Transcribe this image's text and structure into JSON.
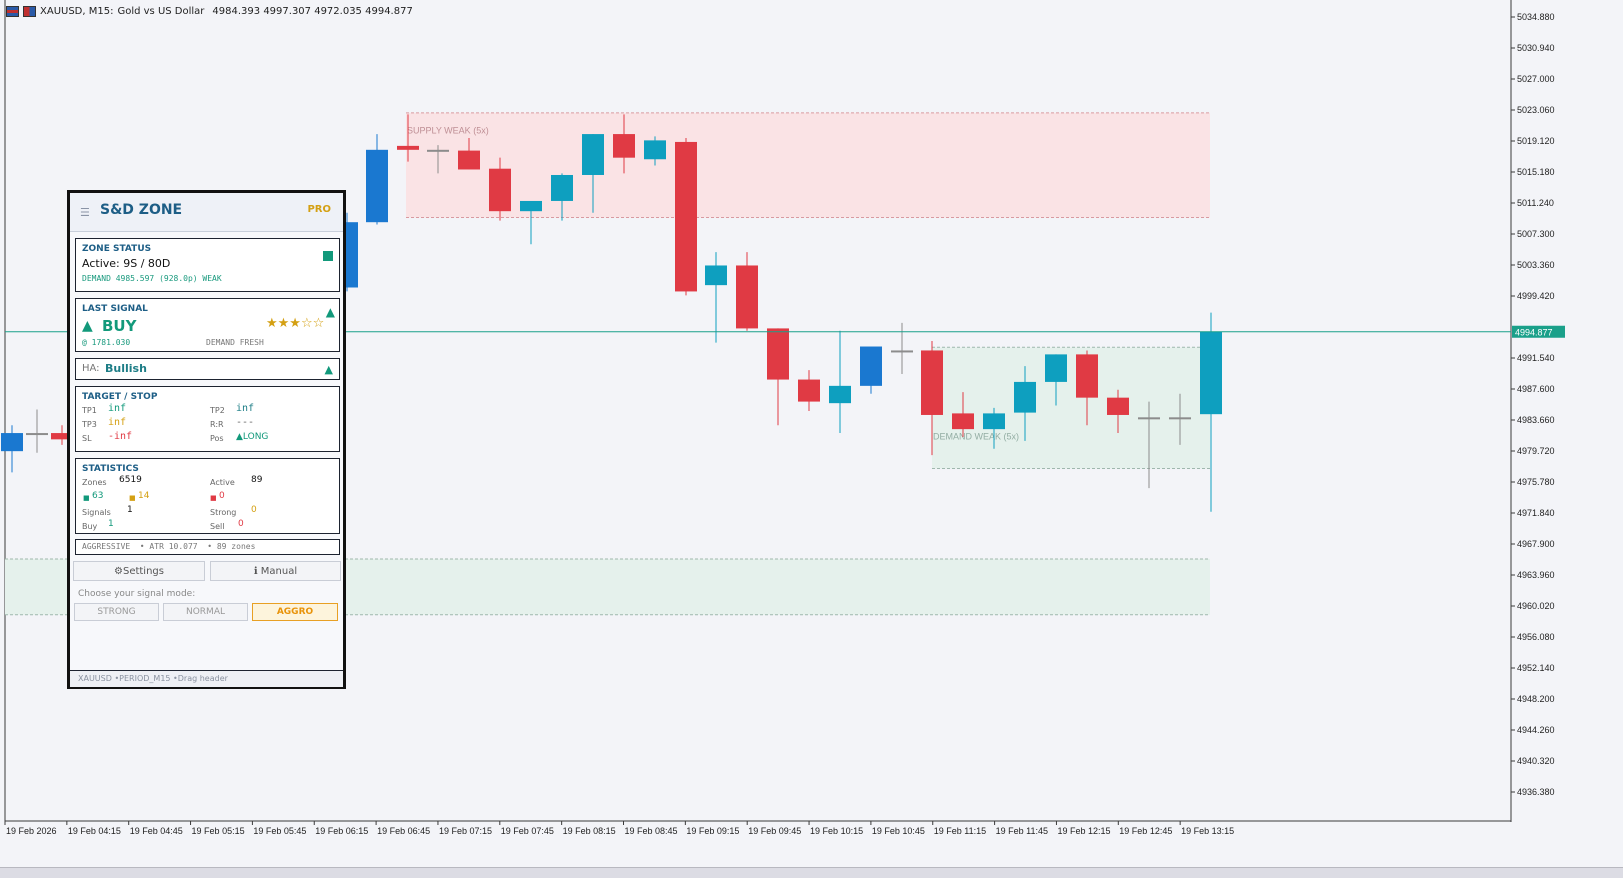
{
  "header": {
    "symbol": "XAUUSD, M15:",
    "description": "Gold vs US Dollar",
    "ohlc": "4984.393 4997.307 4972.035 4994.877"
  },
  "price_axis": {
    "labels": [
      "5034.880",
      "5030.940",
      "5027.000",
      "5023.060",
      "5019.120",
      "5015.180",
      "5011.240",
      "5007.300",
      "5003.360",
      "4999.420",
      "4991.540",
      "4987.600",
      "4983.660",
      "4979.720",
      "4975.780",
      "4971.840",
      "4967.900",
      "4963.960",
      "4960.020",
      "4956.080",
      "4952.140",
      "4948.200",
      "4944.260",
      "4940.320",
      "4936.380"
    ],
    "current_price": "4994.877"
  },
  "time_axis": {
    "labels": [
      "19 Feb 2026",
      "19 Feb 04:15",
      "19 Feb 04:45",
      "19 Feb 05:15",
      "19 Feb 05:45",
      "19 Feb 06:15",
      "19 Feb 06:45",
      "19 Feb 07:15",
      "19 Feb 07:45",
      "19 Feb 08:15",
      "19 Feb 08:45",
      "19 Feb 09:15",
      "19 Feb 09:45",
      "19 Feb 10:15",
      "19 Feb 10:45",
      "19 Feb 11:15",
      "19 Feb 11:45",
      "19 Feb 12:15",
      "19 Feb 12:45",
      "19 Feb 13:15"
    ]
  },
  "zones": {
    "supply_label": "SUPPLY WEAK (5x)",
    "demand_label": "DEMAND WEAK (5x)"
  },
  "colors": {
    "bull": "#0e9fbf",
    "bull_dark": "#1a78d0",
    "bear": "#e03a44",
    "doji": "#8c8c8c",
    "price_line": "#1aa08a",
    "supply_zone": "#fae3e5",
    "demand_zone": "#e5f1ec"
  },
  "chart_data": {
    "type": "candlestick",
    "series": [
      {
        "o": 4979.7,
        "h": 4983.0,
        "l": 4977.0,
        "c": 4982.0
      },
      {
        "o": 4982.0,
        "h": 4985.0,
        "l": 4979.5,
        "c": 4982.0
      },
      {
        "o": 4982.0,
        "h": 4983.0,
        "l": 4980.5,
        "c": 4981.2
      },
      {
        "o": 5000.5,
        "h": 5010.0,
        "l": 5000.0,
        "c": 5008.8
      },
      {
        "o": 5008.8,
        "h": 5020.0,
        "l": 5008.5,
        "c": 5018.0
      },
      {
        "o": 5018.5,
        "h": 5022.5,
        "l": 5016.5,
        "c": 5018.0
      },
      {
        "o": 5018.0,
        "h": 5018.6,
        "l": 5015.0,
        "c": 5018.0
      },
      {
        "o": 5017.9,
        "h": 5019.5,
        "l": 5015.5,
        "c": 5015.5
      },
      {
        "o": 5015.6,
        "h": 5017.0,
        "l": 5009.0,
        "c": 5010.2
      },
      {
        "o": 5010.2,
        "h": 5011.5,
        "l": 5006.0,
        "c": 5011.5
      },
      {
        "o": 5011.5,
        "h": 5015.0,
        "l": 5009.0,
        "c": 5014.8
      },
      {
        "o": 5014.8,
        "h": 5020.0,
        "l": 5010.0,
        "c": 5020.0
      },
      {
        "o": 5020.0,
        "h": 5022.5,
        "l": 5015.0,
        "c": 5017.0
      },
      {
        "o": 5016.8,
        "h": 5019.7,
        "l": 5016.0,
        "c": 5019.2
      },
      {
        "o": 5019.0,
        "h": 5019.5,
        "l": 4999.5,
        "c": 5000.0
      },
      {
        "o": 5000.8,
        "h": 5005.0,
        "l": 4993.5,
        "c": 5003.3
      },
      {
        "o": 5003.3,
        "h": 5005.0,
        "l": 4995.0,
        "c": 4995.3
      },
      {
        "o": 4995.3,
        "h": 4995.3,
        "l": 4983.0,
        "c": 4988.8
      },
      {
        "o": 4988.8,
        "h": 4990.0,
        "l": 4984.8,
        "c": 4986.0
      },
      {
        "o": 4985.8,
        "h": 4995.0,
        "l": 4982.0,
        "c": 4988.0
      },
      {
        "o": 4988.0,
        "h": 4989.5,
        "l": 4987.0,
        "c": 4993.0
      },
      {
        "o": 4992.5,
        "h": 4996.0,
        "l": 4989.5,
        "c": 4992.5
      },
      {
        "o": 4992.5,
        "h": 4993.7,
        "l": 4979.2,
        "c": 4984.3
      },
      {
        "o": 4984.5,
        "h": 4987.2,
        "l": 4981.5,
        "c": 4982.5
      },
      {
        "o": 4982.5,
        "h": 4985.2,
        "l": 4980.0,
        "c": 4984.5
      },
      {
        "o": 4984.6,
        "h": 4990.5,
        "l": 4981.0,
        "c": 4988.5
      },
      {
        "o": 4988.5,
        "h": 4992.0,
        "l": 4985.5,
        "c": 4992.0
      },
      {
        "o": 4992.0,
        "h": 4992.5,
        "l": 4983.0,
        "c": 4986.5
      },
      {
        "o": 4986.5,
        "h": 4987.5,
        "l": 4982.0,
        "c": 4984.3
      },
      {
        "o": 4984.0,
        "h": 4986.0,
        "l": 4975.0,
        "c": 4984.0
      },
      {
        "o": 4984.0,
        "h": 4987.0,
        "l": 4980.5,
        "c": 4984.0
      },
      {
        "o": 4984.4,
        "h": 4997.3,
        "l": 4972.0,
        "c": 4994.9
      }
    ]
  },
  "panel": {
    "title": "S&D ZONE",
    "badge": "PRO",
    "zone_status": {
      "label": "ZONE STATUS",
      "active": "Active: 9S / 80D",
      "detail": "DEMAND 4985.597 (928.0p) WEAK"
    },
    "last_signal": {
      "label": "LAST SIGNAL",
      "direction": "BUY",
      "stars": "★★★☆☆",
      "price": "@ 1781.030",
      "zone": "DEMAND FRESH"
    },
    "ha": {
      "label": "HA:",
      "value": "Bullish"
    },
    "target_stop": {
      "label": "TARGET / STOP",
      "tp1_label": "TP1",
      "tp1_value": "inf",
      "tp2_label": "TP2",
      "tp2_value": "inf",
      "tp3_label": "TP3",
      "tp3_value": "inf",
      "rr_label": "R:R",
      "rr_value": "---",
      "sl_label": "SL",
      "sl_value": "-inf",
      "pos_label": "Pos",
      "pos_value": "▲LONG"
    },
    "statistics": {
      "label": "STATISTICS",
      "zones_label": "Zones",
      "zones_value": "6519",
      "active_label": "Active",
      "active_value": "89",
      "green_count": "63",
      "yellow_count": "14",
      "red_count": "0",
      "signals_label": "Signals",
      "signals_value": "1",
      "strong_label": "Strong",
      "strong_value": "0",
      "buy_label": "Buy",
      "buy_value": "1",
      "sell_label": "Sell",
      "sell_value": "0"
    },
    "mode_line": "AGGRESSIVE  • ATR 10.077  • 89 zones",
    "settings_button": "⚙Settings",
    "manual_button": "ℹ Manual",
    "choose_label": "Choose your signal mode:",
    "mode_buttons": [
      "STRONG",
      "NORMAL",
      "AGGRO"
    ],
    "footer": "XAUUSD •PERIOD_M15 •Drag header"
  }
}
